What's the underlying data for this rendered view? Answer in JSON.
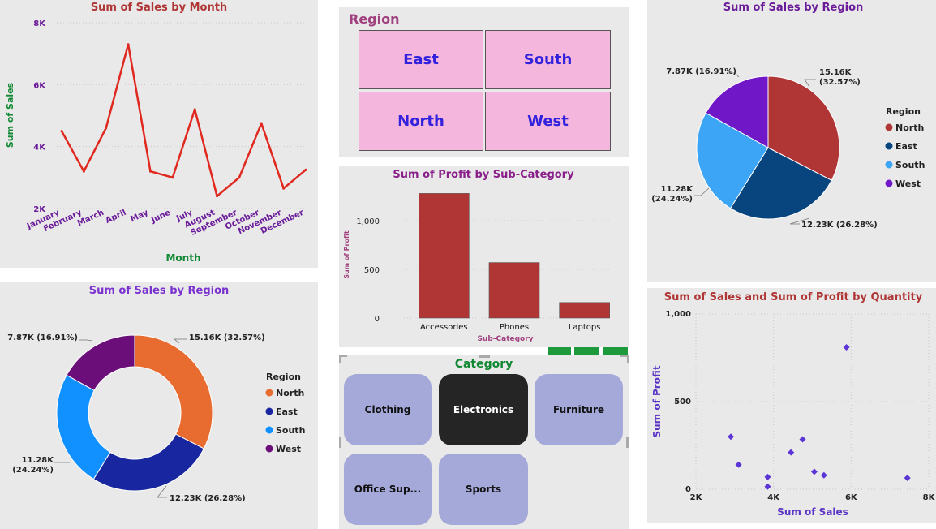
{
  "chart_data": [
    {
      "id": "sales-by-month",
      "type": "line",
      "title": "Sum of Sales by Month",
      "xlabel": "Month",
      "ylabel": "Sum of Sales",
      "categories": [
        "January",
        "February",
        "March",
        "April",
        "May",
        "June",
        "July",
        "August",
        "September",
        "October",
        "November",
        "December"
      ],
      "values": [
        4500,
        3200,
        4600,
        7300,
        3200,
        3000,
        5200,
        2400,
        3000,
        4750,
        2650,
        3250
      ],
      "yticks": [
        "2K",
        "4K",
        "6K",
        "8K"
      ],
      "ytick_values": [
        2000,
        4000,
        6000,
        8000
      ],
      "ylim": [
        2000,
        8000
      ],
      "color": "#e0281e"
    },
    {
      "id": "sales-by-region-pie",
      "type": "pie",
      "title": "Sum of Sales by Region",
      "legend_title": "Region",
      "legend_position": "right",
      "slices": [
        {
          "name": "North",
          "value": 15.16,
          "label": "15.16K (32.57%)",
          "color": "#b03535"
        },
        {
          "name": "East",
          "value": 12.23,
          "label": "12.23K (26.28%)",
          "color": "#08457e"
        },
        {
          "name": "South",
          "value": 11.28,
          "label": "11.28K (24.24%)",
          "color": "#3ca5f5"
        },
        {
          "name": "West",
          "value": 7.87,
          "label": "7.87K (16.91%)",
          "color": "#7018c8"
        }
      ]
    },
    {
      "id": "profit-by-subcategory",
      "type": "bar",
      "title": "Sum of Profit by Sub-Category",
      "xlabel": "Sub-Category",
      "ylabel": "Sum of Profit",
      "categories": [
        "Accessories",
        "Phones",
        "Laptops"
      ],
      "values": [
        1280,
        570,
        160
      ],
      "yticks": [
        "0",
        "500",
        "1,000"
      ],
      "ytick_values": [
        0,
        500,
        1000
      ],
      "ylim": [
        0,
        1300
      ],
      "color": "#b03535"
    },
    {
      "id": "sales-by-region-donut",
      "type": "pie",
      "title": "Sum of Sales by Region",
      "legend_title": "Region",
      "legend_position": "right",
      "slices": [
        {
          "name": "North",
          "value": 15.16,
          "label": "15.16K (32.57%)",
          "color": "#e86c30"
        },
        {
          "name": "East",
          "value": 12.23,
          "label": "12.23K (26.28%)",
          "color": "#1826a0"
        },
        {
          "name": "South",
          "value": 11.28,
          "label": "11.28K (24.24%)",
          "color": "#1190ff"
        },
        {
          "name": "West",
          "value": 7.87,
          "label": "7.87K (16.91%)",
          "color": "#6b0e7a"
        }
      ]
    },
    {
      "id": "sales-profit-by-quantity",
      "type": "scatter",
      "title": "Sum of Sales and Sum of Profit by Quantity",
      "xlabel": "Sum of Sales",
      "ylabel": "Sum of Profit",
      "xticks": [
        "2K",
        "4K",
        "6K",
        "8K"
      ],
      "xtick_values": [
        2000,
        4000,
        6000,
        8000
      ],
      "yticks": [
        "0",
        "500",
        "1,000"
      ],
      "ytick_values": [
        0,
        500,
        1000
      ],
      "xlim": [
        2000,
        8000
      ],
      "ylim": [
        0,
        1000
      ],
      "points": [
        {
          "x": 5880,
          "y": 810
        },
        {
          "x": 2900,
          "y": 300
        },
        {
          "x": 3100,
          "y": 140
        },
        {
          "x": 3850,
          "y": 70
        },
        {
          "x": 3850,
          "y": 15
        },
        {
          "x": 4450,
          "y": 210
        },
        {
          "x": 4750,
          "y": 285
        },
        {
          "x": 5050,
          "y": 100
        },
        {
          "x": 5300,
          "y": 80
        },
        {
          "x": 7450,
          "y": 65
        }
      ],
      "color": "#5b35d5"
    }
  ],
  "region_slicer": {
    "title": "Region",
    "options": [
      "East",
      "South",
      "North",
      "West"
    ]
  },
  "category_slicer": {
    "title": "Category",
    "options": [
      {
        "label": "Clothing",
        "selected": false
      },
      {
        "label": "Electronics",
        "selected": true
      },
      {
        "label": "Furniture",
        "selected": false
      },
      {
        "label": "Office Sup...",
        "selected": false
      },
      {
        "label": "Sports",
        "selected": false
      }
    ]
  },
  "colors": {
    "panel_bg": "#e9e9e9",
    "title_red": "#b03535",
    "title_purple": "#6a1b9a",
    "axis_green": "#118833",
    "tick_purple": "#6a1b9a"
  }
}
